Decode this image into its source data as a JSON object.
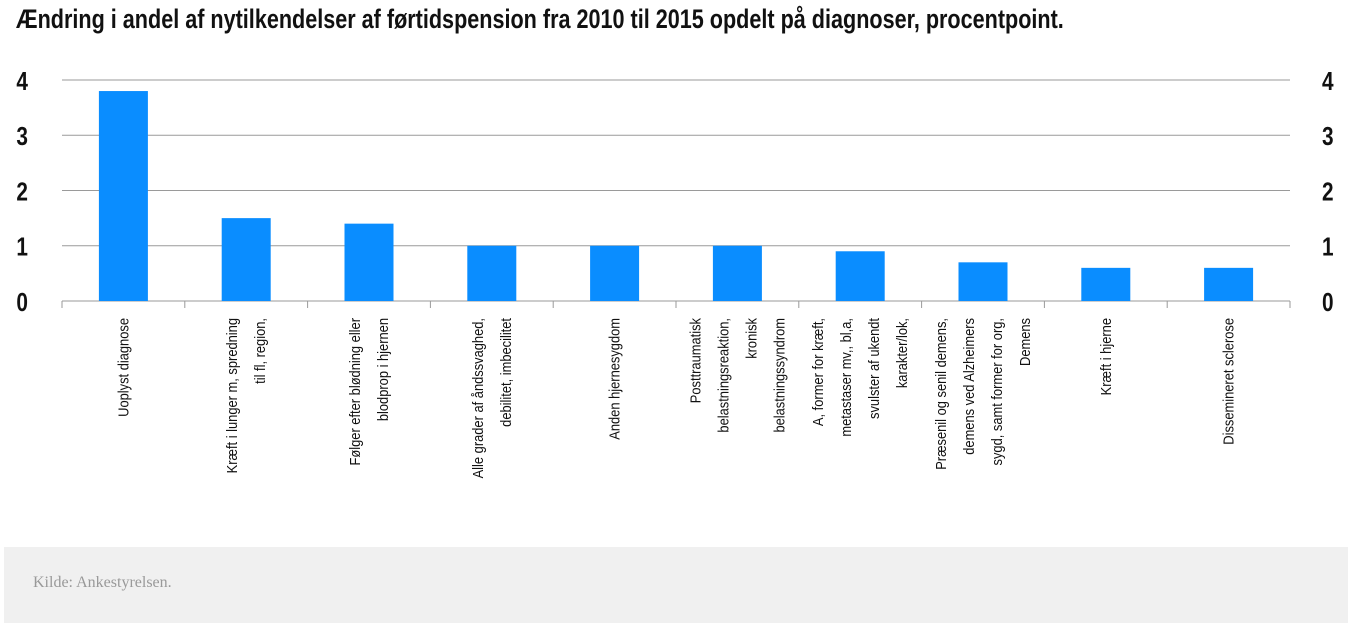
{
  "title": "Ændring i andel af nytilkendelser af førtidspension fra 2010 til 2015 opdelt på diagnoser, procentpoint.",
  "source": "Kilde: Ankestyrelsen.",
  "colors": {
    "bar": "#0a8dff",
    "grid": "#9a9a9a",
    "footer_bg": "#f0f0f0"
  },
  "chart_data": {
    "type": "bar",
    "title": "Ændring i andel af nytilkendelser af førtidspension fra 2010 til 2015 opdelt på diagnoser, procentpoint.",
    "categories": [
      [
        "Uoplyst diagnose"
      ],
      [
        "Kræft i lunger m, spredning",
        "til fl, region,"
      ],
      [
        "Følger efter blødning eller",
        "blodprop i hjernen"
      ],
      [
        "Alle grader af åndssvaghed,",
        "debilitet, imbecilitet"
      ],
      [
        "Anden hjernesygdom"
      ],
      [
        "Posttraumatisk",
        "belastningsreaktion,",
        "kronisk",
        "belastningssyndrom"
      ],
      [
        "A, former for kræft,",
        "metastaser mv,, bl,a,",
        "svulster af ukendt",
        "karakter/lok,"
      ],
      [
        "Præsenil og senil demens,",
        "demens ved Alzheimers",
        "sygd, samt former for org,",
        "Demens"
      ],
      [
        "Kræft i hjerne"
      ],
      [
        "Dissemineret sclerose"
      ]
    ],
    "values": [
      3.8,
      1.5,
      1.4,
      1.0,
      1.0,
      1.0,
      0.9,
      0.7,
      0.6,
      0.6
    ],
    "ylim": [
      0,
      4
    ],
    "yticks": [
      0,
      1,
      2,
      3,
      4
    ],
    "xlabel": "",
    "ylabel": "",
    "grid": true,
    "legend": "none"
  }
}
